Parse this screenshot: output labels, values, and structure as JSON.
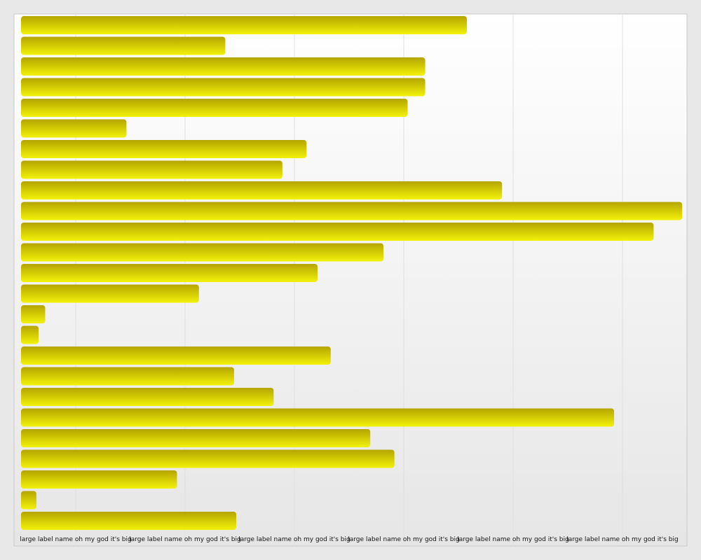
{
  "chart_data": {
    "type": "bar",
    "orientation": "horizontal",
    "title": "",
    "xlabel": "",
    "ylabel": "",
    "xlim": [
      0,
      30
    ],
    "grid": true,
    "legend": "none",
    "bar_color": "#f2f20a",
    "bar_color_dark": "#b5a500",
    "xticks": [
      "large label name oh my god it's big",
      "large label name oh my god it's big",
      "large label name oh my god it's big",
      "large label name oh my god it's big",
      "large label name oh my god it's big",
      "large label name oh my god it's big"
    ],
    "values": [
      20.3,
      9.3,
      18.4,
      18.4,
      17.6,
      4.8,
      13.0,
      11.9,
      21.9,
      30.1,
      28.8,
      16.5,
      13.5,
      8.1,
      1.1,
      0.8,
      14.1,
      9.7,
      11.5,
      27.0,
      15.9,
      17.0,
      7.1,
      0.7,
      9.8
    ]
  }
}
